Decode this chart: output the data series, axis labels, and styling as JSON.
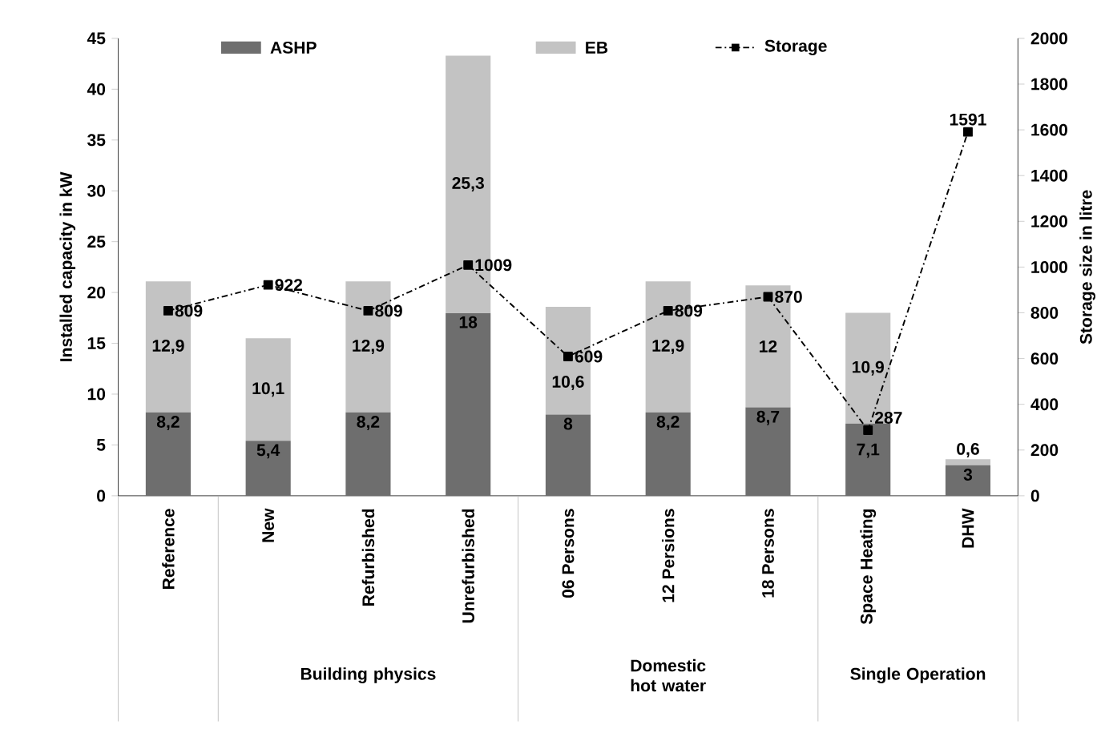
{
  "chart_data": {
    "type": "bar",
    "stacked": true,
    "legend": "top",
    "ylabel": "Installed capacity in  kW",
    "y2label": "Storage size  in litre",
    "categories": [
      "Reference",
      "New",
      "Refurbished",
      "Unrefurbished",
      "06 Persons",
      "12 Persions",
      "18 Persons",
      "Space Heating",
      "DHW"
    ],
    "series": [
      {
        "name": "ASHP",
        "color": "#6e6e6e",
        "values": [
          8.2,
          5.4,
          8.2,
          18,
          8,
          8.2,
          8.7,
          7.1,
          3
        ],
        "value_labels": [
          "8,2",
          "5,4",
          "8,2",
          "18",
          "8",
          "8,2",
          "8,7",
          "7,1",
          "3"
        ]
      },
      {
        "name": "EB",
        "color": "#c3c3c3",
        "values": [
          12.9,
          10.1,
          12.9,
          25.3,
          10.6,
          12.9,
          12,
          10.9,
          0.6
        ],
        "value_labels": [
          "12,9",
          "10,1",
          "12,9",
          "25,3",
          "10,6",
          "12,9",
          "12",
          "10,9",
          "0,6"
        ]
      },
      {
        "name": "Storage",
        "type": "line",
        "axis": "y2",
        "color": "#000000",
        "marker": "square",
        "line_style": "dashed",
        "values": [
          809,
          922,
          809,
          1009,
          609,
          809,
          870,
          287,
          1591
        ],
        "value_labels": [
          "809",
          "922",
          "809",
          "1009",
          "609",
          "809",
          "870",
          "287",
          "1591"
        ]
      }
    ],
    "ylim": [
      0,
      45
    ],
    "yticks": [
      0,
      5,
      10,
      15,
      20,
      25,
      30,
      35,
      40,
      45
    ],
    "y2lim": [
      0,
      2000
    ],
    "y2ticks": [
      0,
      200,
      400,
      600,
      800,
      1000,
      1200,
      1400,
      1600,
      1800,
      2000
    ],
    "annotations": [
      "Building physics",
      "Domestic hot water",
      "Single Operation"
    ]
  }
}
